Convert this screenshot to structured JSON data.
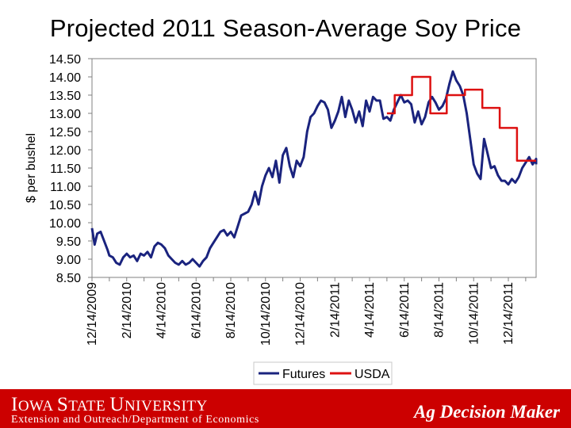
{
  "page": {
    "title": "Projected 2011 Season-Average Soy Price"
  },
  "footer": {
    "logo_text": "Iowa State University",
    "logo_caps": [
      "I",
      "OWA ",
      "S",
      "TATE ",
      "U",
      "NIVERSITY"
    ],
    "department": "Extension and Outreach/Department of Economics",
    "brand": "Ag Decision Maker"
  },
  "colors": {
    "futures": "#1a237e",
    "usda": "#dd1111",
    "footer_bg": "#cc0000",
    "border": "#7f7f7f"
  },
  "chart_data": {
    "type": "line",
    "title": "Projected 2011 Season-Average Soy Price",
    "xlabel": "",
    "ylabel": "$ per bushel",
    "ylim": [
      8.5,
      14.5
    ],
    "yticks": [
      "14.50",
      "14.00",
      "13.50",
      "13.00",
      "12.50",
      "12.00",
      "11.50",
      "11.00",
      "10.50",
      "10.00",
      "9.50",
      "9.00",
      "8.50"
    ],
    "xlim": [
      "12/14/2009",
      "1/31/2012"
    ],
    "xticks": [
      "12/14/2009",
      "2/14/2010",
      "4/14/2010",
      "6/14/2010",
      "8/14/2010",
      "10/14/2010",
      "12/14/2010",
      "2/14/2011",
      "4/14/2011",
      "6/14/2011",
      "8/14/2011",
      "10/14/2011",
      "12/14/2011"
    ],
    "x_month_index": [
      0,
      2,
      4,
      6,
      8,
      10,
      12,
      14,
      16,
      18,
      20,
      22,
      24
    ],
    "legend": {
      "position": "bottom",
      "entries": [
        "Futures",
        "USDA"
      ]
    },
    "series": [
      {
        "name": "Futures",
        "month_index": [
          0,
          0.15,
          0.3,
          0.5,
          0.7,
          0.9,
          1.0,
          1.2,
          1.4,
          1.6,
          1.8,
          2.0,
          2.2,
          2.4,
          2.6,
          2.8,
          3.0,
          3.2,
          3.4,
          3.6,
          3.8,
          4.0,
          4.2,
          4.4,
          4.6,
          4.8,
          5.0,
          5.2,
          5.4,
          5.6,
          5.8,
          6.0,
          6.2,
          6.4,
          6.6,
          6.8,
          7.0,
          7.2,
          7.4,
          7.6,
          7.8,
          8.0,
          8.2,
          8.4,
          8.6,
          8.8,
          9.0,
          9.2,
          9.4,
          9.6,
          9.8,
          10.0,
          10.2,
          10.4,
          10.6,
          10.8,
          11.0,
          11.2,
          11.4,
          11.6,
          11.8,
          12.0,
          12.2,
          12.4,
          12.6,
          12.8,
          13.0,
          13.2,
          13.4,
          13.6,
          13.8,
          14.0,
          14.2,
          14.4,
          14.6,
          14.8,
          15.0,
          15.2,
          15.4,
          15.6,
          15.8,
          16.0,
          16.2,
          16.4,
          16.6,
          16.8,
          17.0,
          17.2,
          17.4,
          17.6,
          17.8,
          18.0,
          18.2,
          18.4,
          18.6,
          18.8,
          19.0,
          19.2,
          19.4,
          19.6,
          19.8,
          20.0,
          20.2,
          20.4,
          20.6,
          20.8,
          21.0,
          21.2,
          21.4,
          21.6,
          21.8,
          22.0,
          22.2,
          22.4,
          22.6,
          22.8,
          23.0,
          23.2,
          23.4,
          23.6,
          23.8,
          24.0,
          24.2,
          24.4,
          24.6,
          24.8,
          25.0,
          25.2,
          25.4,
          25.6,
          25.6
        ],
        "values": [
          9.85,
          9.4,
          9.7,
          9.75,
          9.5,
          9.25,
          9.1,
          9.05,
          8.9,
          8.85,
          9.05,
          9.15,
          9.05,
          9.1,
          8.95,
          9.15,
          9.1,
          9.2,
          9.05,
          9.35,
          9.45,
          9.4,
          9.3,
          9.1,
          9.0,
          8.9,
          8.85,
          8.95,
          8.85,
          8.9,
          9.0,
          8.9,
          8.8,
          8.95,
          9.05,
          9.3,
          9.45,
          9.6,
          9.75,
          9.8,
          9.65,
          9.75,
          9.6,
          9.9,
          10.2,
          10.25,
          10.3,
          10.5,
          10.85,
          10.5,
          11.0,
          11.3,
          11.5,
          11.25,
          11.7,
          11.1,
          11.85,
          12.05,
          11.55,
          11.25,
          11.7,
          11.55,
          11.8,
          12.5,
          12.9,
          13.0,
          13.2,
          13.35,
          13.3,
          13.1,
          12.6,
          12.8,
          13.05,
          13.45,
          12.9,
          13.35,
          13.1,
          12.75,
          13.05,
          12.65,
          13.35,
          13.05,
          13.45,
          13.35,
          13.35,
          12.85,
          12.9,
          12.8,
          13.1,
          13.3,
          13.5,
          13.3,
          13.35,
          13.25,
          12.75,
          13.05,
          12.7,
          12.9,
          13.3,
          13.45,
          13.3,
          13.1,
          13.2,
          13.4,
          13.8,
          14.15,
          13.9,
          13.75,
          13.5,
          13.0,
          12.3,
          11.6,
          11.35,
          11.2,
          12.3,
          11.9,
          11.5,
          11.55,
          11.3,
          11.15,
          11.15,
          11.05,
          11.2,
          11.1,
          11.25,
          11.5,
          11.65,
          11.8,
          11.6,
          11.75,
          11.6
        ]
      },
      {
        "name": "USDA",
        "month_index": [
          17.0,
          17.45,
          17.45,
          18.45,
          18.45,
          19.5,
          19.5,
          20.45,
          20.45,
          21.5,
          21.5,
          22.5,
          22.5,
          23.5,
          23.5,
          24.5,
          24.5,
          25.6
        ],
        "values": [
          13.0,
          13.0,
          13.5,
          13.5,
          14.0,
          14.0,
          13.0,
          13.0,
          13.5,
          13.5,
          13.65,
          13.65,
          13.15,
          13.15,
          12.6,
          12.6,
          11.7,
          11.7
        ]
      }
    ]
  }
}
